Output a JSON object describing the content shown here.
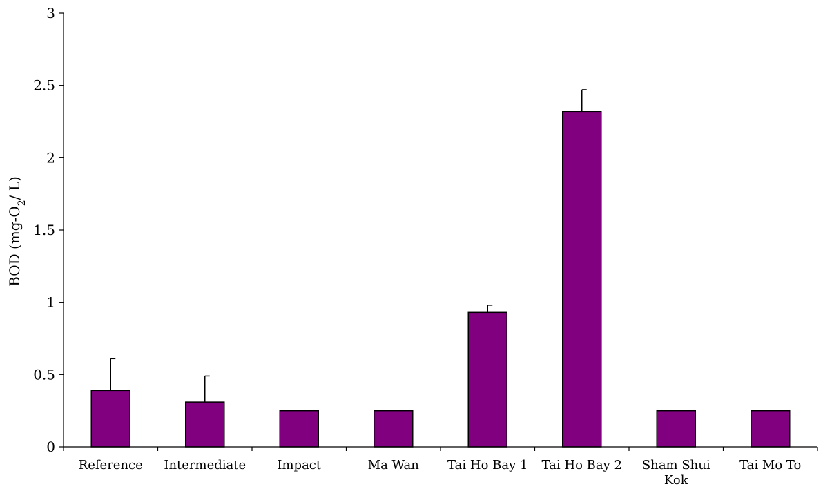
{
  "chart_data": {
    "type": "bar",
    "categories": [
      "Reference",
      "Intermediate",
      "Impact",
      "Ma Wan",
      "Tai Ho Bay 1",
      "Tai Ho Bay 2",
      "Sham Shui Kok",
      "Tai Mo To"
    ],
    "category_lines": [
      [
        "Reference"
      ],
      [
        "Intermediate"
      ],
      [
        "Impact"
      ],
      [
        "Ma Wan"
      ],
      [
        "Tai Ho Bay 1"
      ],
      [
        "Tai Ho Bay 2"
      ],
      [
        "Sham Shui",
        "Kok"
      ],
      [
        "Tai Mo To"
      ]
    ],
    "values": [
      0.39,
      0.31,
      0.25,
      0.25,
      0.93,
      2.32,
      0.25,
      0.25
    ],
    "error_plus": [
      0.22,
      0.18,
      0,
      0,
      0.05,
      0.15,
      0,
      0
    ],
    "ylabel": {
      "main": "BOD (mg-O",
      "sub": "2",
      "tail": "/ L)"
    },
    "ylim": [
      0,
      3
    ],
    "yticks": [
      "0",
      "0.5",
      "1",
      "1.5",
      "2",
      "2.5",
      "3"
    ],
    "bar_color": "#800080",
    "grid": false,
    "legend": "none"
  }
}
